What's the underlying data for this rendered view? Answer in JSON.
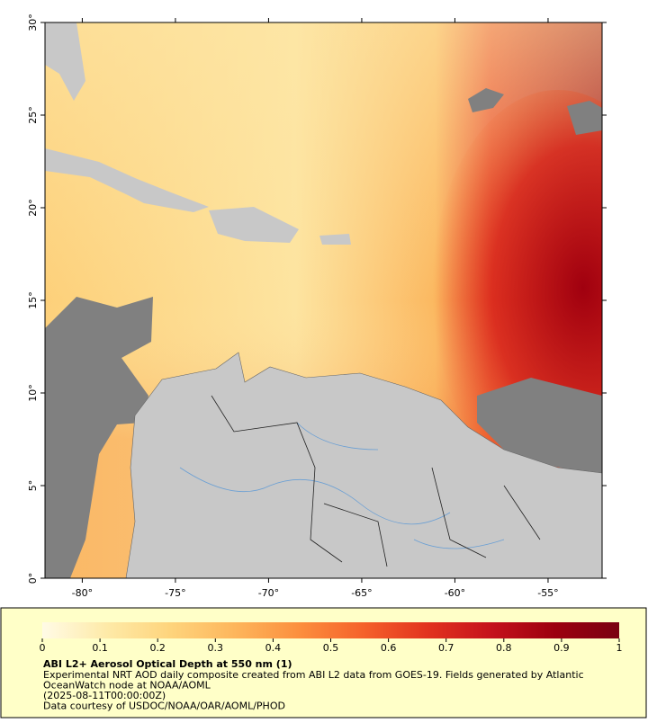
{
  "map": {
    "type": "map",
    "xlim": [
      -82,
      -52.1
    ],
    "ylim": [
      0,
      30
    ],
    "xticks": [
      {
        "value": -80,
        "label": "-80°"
      },
      {
        "value": -75,
        "label": "-75°"
      },
      {
        "value": -70,
        "label": "-70°"
      },
      {
        "value": -65,
        "label": "-65°"
      },
      {
        "value": -60,
        "label": "-60°"
      },
      {
        "value": -55,
        "label": "-55°"
      }
    ],
    "yticks": [
      {
        "value": 0,
        "label": "0°"
      },
      {
        "value": 5,
        "label": "5°"
      },
      {
        "value": 10,
        "label": "10°"
      },
      {
        "value": 15,
        "label": "15°"
      },
      {
        "value": 20,
        "label": "20°"
      },
      {
        "value": 25,
        "label": "25°"
      },
      {
        "value": 30,
        "label": "30°"
      }
    ]
  },
  "colorbar": {
    "lim": [
      0,
      1
    ],
    "ticks": [
      0,
      0.1,
      0.2,
      0.3,
      0.4,
      0.5,
      0.6,
      0.7,
      0.8,
      0.9,
      1
    ],
    "colors": [
      "#fffbe6",
      "#feeaa8",
      "#fed47c",
      "#fdb65c",
      "#fc8f3e",
      "#f5622b",
      "#e2331f",
      "#c5121c",
      "#9c000f",
      "#7a0012"
    ]
  },
  "caption": {
    "title": "ABI L2+ Aerosol Optical Depth at 550 nm (1)",
    "lines": [
      "Experimental NRT AOD daily composite created from ABI L2 data from GOES-19. Fields generated by Atlantic",
      "OceanWatch node at NOAA/AOML",
      "(2025-08-11T00:00:00Z)",
      "Data courtesy of USDOC/NOAA/OAR/AOML/PHOD"
    ]
  }
}
